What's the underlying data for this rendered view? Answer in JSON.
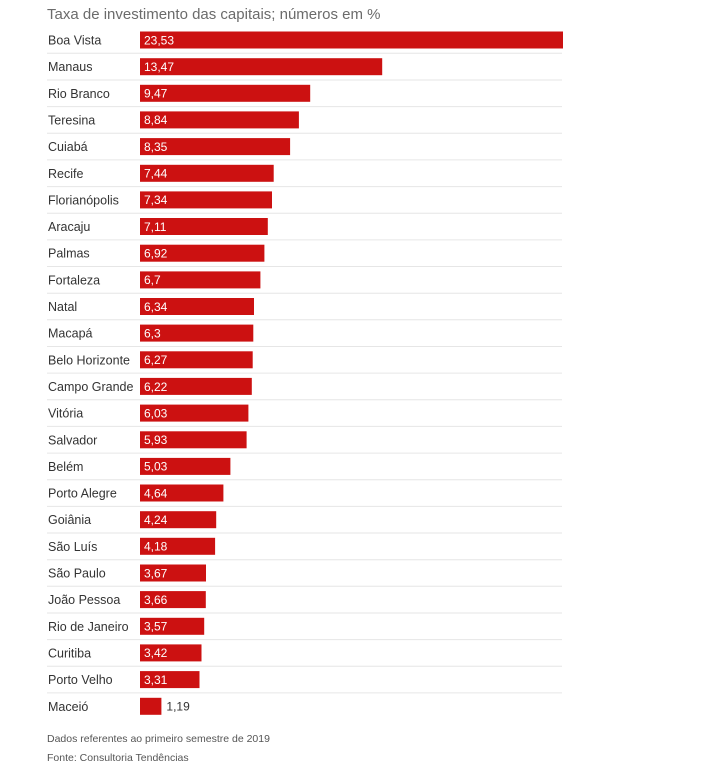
{
  "colors": {
    "bar": "#cc1111"
  },
  "chart_data": {
    "type": "bar",
    "orientation": "horizontal",
    "title": "Taxa de investimento das capitais; números em %",
    "categories": [
      "Boa Vista",
      "Manaus",
      "Rio Branco",
      "Teresina",
      "Cuiabá",
      "Recife",
      "Florianópolis",
      "Aracaju",
      "Palmas",
      "Fortaleza",
      "Natal",
      "Macapá",
      "Belo Horizonte",
      "Campo Grande",
      "Vitória",
      "Salvador",
      "Belém",
      "Porto Alegre",
      "Goiânia",
      "São Luís",
      "São Paulo",
      "João Pessoa",
      "Rio de Janeiro",
      "Curitiba",
      "Porto Velho",
      "Maceió"
    ],
    "values": [
      23.53,
      13.47,
      9.47,
      8.84,
      8.35,
      7.44,
      7.34,
      7.11,
      6.92,
      6.7,
      6.34,
      6.3,
      6.27,
      6.22,
      6.03,
      5.93,
      5.03,
      4.64,
      4.24,
      4.18,
      3.67,
      3.66,
      3.57,
      3.42,
      3.31,
      1.19
    ],
    "value_labels": [
      "23,53",
      "13,47",
      "9,47",
      "8,84",
      "8,35",
      "7,44",
      "7,34",
      "7,11",
      "6,92",
      "6,7",
      "6,34",
      "6,3",
      "6,27",
      "6,22",
      "6,03",
      "5,93",
      "5,03",
      "4,64",
      "4,24",
      "4,18",
      "3,67",
      "3,66",
      "3,57",
      "3,42",
      "3,31",
      "1,19"
    ],
    "xlim": [
      0,
      23.53
    ]
  },
  "footnotes": {
    "note": "Dados referentes ao primeiro semestre de 2019",
    "source": "Fonte: Consultoria Tendências"
  }
}
